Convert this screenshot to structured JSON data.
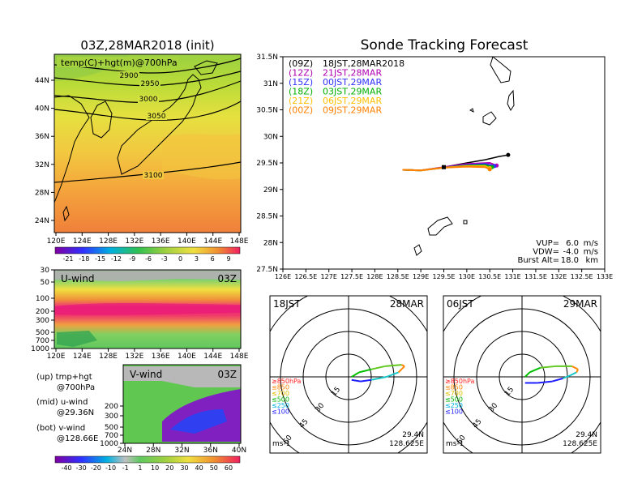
{
  "colors": {
    "hodo_segments": [
      "#2020ff",
      "#18c8c8",
      "#ff8800",
      "#60c820",
      "#00c000"
    ],
    "tracks": [
      "#000000",
      "#b000b0",
      "#3030ff",
      "#00b000",
      "#ffc000",
      "#ff8000"
    ]
  },
  "chart_data": [
    {
      "type": "heatmap",
      "panel": "temperature-map",
      "title": "03Z,28MAR2018 (init)",
      "inner_label": "temp(C)+hgt(m)@700hPa",
      "x_ticks": [
        "120E",
        "124E",
        "128E",
        "132E",
        "136E",
        "140E",
        "144E",
        "148E"
      ],
      "y_ticks": [
        "44N",
        "40N",
        "36N",
        "32N",
        "28N",
        "24N"
      ],
      "contours": [
        "2900",
        "2950",
        "3000",
        "3050",
        "3100"
      ],
      "colorbar": [
        "-21",
        "-18",
        "-15",
        "-12",
        "-9",
        "-6",
        "-3",
        "0",
        "3",
        "6",
        "9"
      ]
    },
    {
      "type": "heatmap",
      "panel": "u-wind",
      "title": "U-wind",
      "time": "03Z",
      "y_ticks": [
        "30",
        "50",
        "100",
        "200",
        "300",
        "500",
        "700",
        "1000"
      ],
      "x_ticks": [
        "120E",
        "124E",
        "128E",
        "132E",
        "136E",
        "140E",
        "144E",
        "148E"
      ]
    },
    {
      "type": "heatmap",
      "panel": "v-wind",
      "title": "V-wind",
      "time": "03Z",
      "y_ticks": [
        "200",
        "300",
        "500",
        "700",
        "1000"
      ],
      "x_ticks": [
        "24N",
        "28N",
        "32N",
        "36N",
        "40N"
      ],
      "colorbar": [
        "-40",
        "-30",
        "-20",
        "-10",
        "-1",
        "1",
        "10",
        "20",
        "30",
        "40",
        "50",
        "60"
      ]
    },
    {
      "type": "line",
      "panel": "sonde-track",
      "title": "Sonde Tracking Forecast",
      "xlim": [
        126,
        133
      ],
      "ylim": [
        27.5,
        31.5
      ],
      "x_ticks": [
        "126E",
        "126.5E",
        "127E",
        "127.5E",
        "128E",
        "128.5E",
        "129E",
        "129.5E",
        "130E",
        "130.5E",
        "131E",
        "131.5E",
        "132E",
        "132.5E",
        "133E"
      ],
      "y_ticks": [
        "31.5N",
        "31N",
        "30.5N",
        "30N",
        "29.5N",
        "29N",
        "28.5N",
        "28N",
        "27.5N"
      ],
      "legend": [
        {
          "code": "(09Z)",
          "time": "18JST,28MAR2018"
        },
        {
          "code": "(12Z)",
          "time": "21JST,28MAR"
        },
        {
          "code": "(15Z)",
          "time": "00JST,29MAR"
        },
        {
          "code": "(18Z)",
          "time": "03JST,29MAR"
        },
        {
          "code": "(21Z)",
          "time": "06JST,29MAR"
        },
        {
          "code": "(00Z)",
          "time": "09JST,29MAR"
        }
      ],
      "params": [
        {
          "label": "VUP=",
          "value": "6.0",
          "unit": "m/s"
        },
        {
          "label": "VDW=",
          "value": "-4.0",
          "unit": "m/s"
        },
        {
          "label": "Burst Alt=",
          "value": "18.0",
          "unit": "km"
        }
      ],
      "series": [
        {
          "x": [
            128.6,
            129.0,
            129.5,
            130.0,
            130.4,
            130.7,
            130.9
          ],
          "y": [
            29.37,
            29.36,
            29.42,
            29.5,
            29.56,
            29.62,
            29.65
          ]
        },
        {
          "x": [
            128.6,
            129.0,
            129.5,
            130.0,
            130.5,
            130.65
          ],
          "y": [
            29.37,
            29.36,
            29.42,
            29.48,
            29.5,
            29.45
          ]
        },
        {
          "x": [
            128.6,
            129.0,
            129.5,
            130.0,
            130.4,
            130.6
          ],
          "y": [
            29.37,
            29.36,
            29.41,
            29.46,
            29.48,
            29.44
          ]
        },
        {
          "x": [
            128.6,
            129.0,
            129.5,
            130.0,
            130.4,
            130.55
          ],
          "y": [
            29.37,
            29.36,
            29.41,
            29.45,
            29.46,
            29.42
          ]
        },
        {
          "x": [
            128.6,
            129.0,
            129.5,
            130.0,
            130.4,
            130.5
          ],
          "y": [
            29.37,
            29.36,
            29.41,
            29.44,
            29.44,
            29.4
          ]
        },
        {
          "x": [
            128.6,
            129.0,
            129.5,
            130.0,
            130.4,
            130.5
          ],
          "y": [
            29.37,
            29.36,
            29.41,
            29.43,
            29.42,
            29.38
          ]
        }
      ]
    },
    {
      "type": "scatter",
      "panel": "hodograph-1",
      "time": "18JST",
      "date": "28MAR",
      "rings": [
        "15",
        "30",
        "45",
        "60"
      ],
      "levels": [
        "≥850hPa",
        "≤850",
        "≤700",
        "≤500",
        "≤250",
        "≤100"
      ],
      "unit": "ms-1",
      "lat": "29.4N",
      "lon": "128.625E",
      "points": [
        [
          2,
          -2
        ],
        [
          8,
          -3
        ],
        [
          15,
          -2
        ],
        [
          25,
          0
        ],
        [
          33,
          3
        ],
        [
          37,
          7
        ],
        [
          35,
          8
        ],
        [
          24,
          7
        ],
        [
          15,
          5
        ],
        [
          7,
          3
        ],
        [
          2,
          0
        ]
      ]
    },
    {
      "type": "scatter",
      "panel": "hodograph-2",
      "time": "06JST",
      "date": "29MAR",
      "rings": [
        "15",
        "30",
        "45",
        "60"
      ],
      "levels": [
        "≥850hPa",
        "≤850",
        "≤700",
        "≤500",
        "≤250",
        "≤100"
      ],
      "unit": "ms-1",
      "lat": "29.4N",
      "lon": "128.625E",
      "points": [
        [
          2,
          -4
        ],
        [
          10,
          -4
        ],
        [
          20,
          -3
        ],
        [
          27,
          -1
        ],
        [
          32,
          1
        ],
        [
          36,
          3
        ],
        [
          37,
          5
        ],
        [
          33,
          7
        ],
        [
          22,
          7
        ],
        [
          12,
          6
        ],
        [
          5,
          3
        ],
        [
          2,
          0
        ]
      ]
    }
  ],
  "legend_notes": [
    {
      "label": "(up) tmp+hgt",
      "sub": "@700hPa"
    },
    {
      "label": "(mid) u-wind",
      "sub": "@29.36N"
    },
    {
      "label": "(bot) v-wind",
      "sub": "@128.66E"
    }
  ]
}
